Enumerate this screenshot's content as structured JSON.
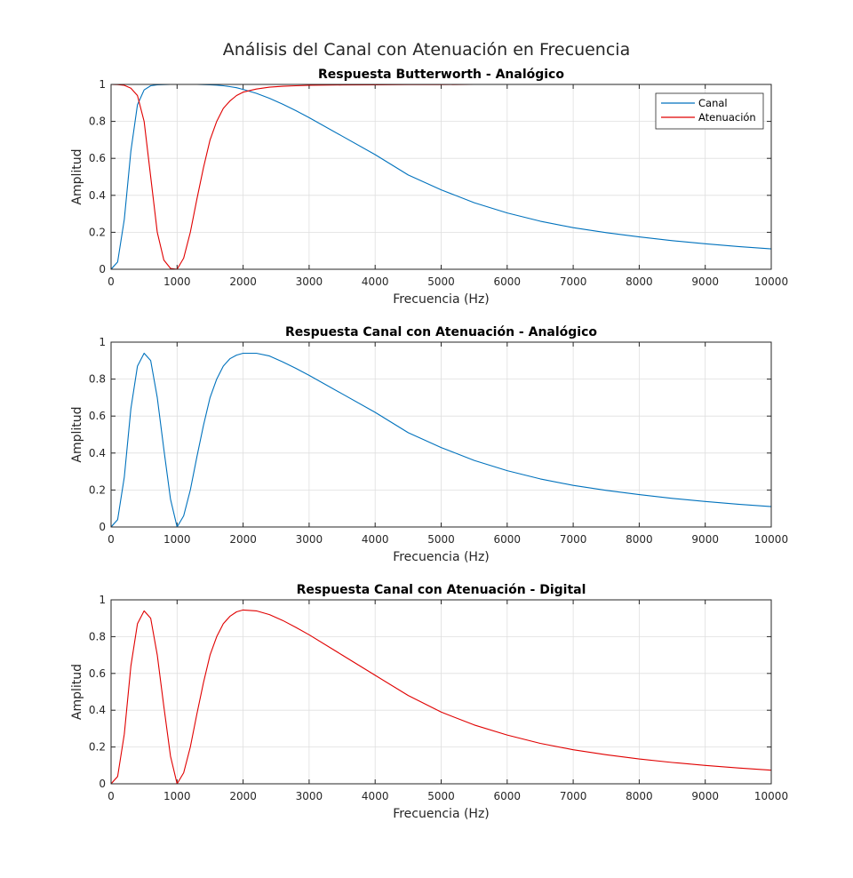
{
  "figure": {
    "suptitle": "Análisis del Canal con Atenuación en Frecuencia"
  },
  "chart_data": [
    {
      "type": "line",
      "title": "Respuesta Butterworth - Analógico",
      "xlabel": "Frecuencia (Hz)",
      "ylabel": "Amplitud",
      "xlim": [
        0,
        10000
      ],
      "ylim": [
        0,
        1
      ],
      "xticks": [
        "0",
        "1000",
        "2000",
        "3000",
        "4000",
        "5000",
        "6000",
        "7000",
        "8000",
        "9000",
        "10000"
      ],
      "yticks": [
        "0",
        "0.2",
        "0.4",
        "0.6",
        "0.8",
        "1"
      ],
      "grid": true,
      "legend": "top-right",
      "x": [
        0,
        100,
        200,
        300,
        400,
        500,
        600,
        700,
        800,
        900,
        1000,
        1100,
        1200,
        1300,
        1400,
        1500,
        1600,
        1700,
        1800,
        1900,
        2000,
        2200,
        2400,
        2600,
        2800,
        3000,
        3500,
        4000,
        4500,
        5000,
        5500,
        6000,
        6500,
        7000,
        7500,
        8000,
        8500,
        9000,
        9500,
        10000
      ],
      "series": [
        {
          "name": "Canal",
          "color": "#0072BD",
          "values": [
            0,
            0.04,
            0.27,
            0.64,
            0.89,
            0.97,
            0.993,
            0.998,
            0.999,
            1.0,
            1.0,
            1.0,
            1.0,
            1.0,
            0.999,
            0.998,
            0.996,
            0.993,
            0.988,
            0.982,
            0.973,
            0.952,
            0.925,
            0.893,
            0.858,
            0.82,
            0.72,
            0.62,
            0.51,
            0.43,
            0.36,
            0.305,
            0.26,
            0.225,
            0.198,
            0.175,
            0.155,
            0.138,
            0.123,
            0.11
          ]
        },
        {
          "name": "Atenuación",
          "color": "#E00000",
          "values": [
            1.0,
            0.999,
            0.995,
            0.98,
            0.94,
            0.8,
            0.5,
            0.2,
            0.05,
            0.005,
            0.0,
            0.06,
            0.2,
            0.38,
            0.55,
            0.7,
            0.8,
            0.87,
            0.91,
            0.94,
            0.958,
            0.975,
            0.985,
            0.99,
            0.993,
            0.995,
            0.997,
            0.998,
            0.999,
            0.999,
            1.0,
            1.0,
            1.0,
            1.0,
            1.0,
            1.0,
            1.0,
            1.0,
            1.0,
            1.0
          ]
        }
      ]
    },
    {
      "type": "line",
      "title": "Respuesta Canal con Atenuación - Analógico",
      "xlabel": "Frecuencia (Hz)",
      "ylabel": "Amplitud",
      "xlim": [
        0,
        10000
      ],
      "ylim": [
        0,
        1
      ],
      "xticks": [
        "0",
        "1000",
        "2000",
        "3000",
        "4000",
        "5000",
        "6000",
        "7000",
        "8000",
        "9000",
        "10000"
      ],
      "yticks": [
        "0",
        "0.2",
        "0.4",
        "0.6",
        "0.8",
        "1"
      ],
      "grid": true,
      "x": [
        0,
        100,
        200,
        300,
        400,
        500,
        600,
        700,
        800,
        900,
        1000,
        1100,
        1200,
        1300,
        1400,
        1500,
        1600,
        1700,
        1800,
        1900,
        2000,
        2200,
        2400,
        2600,
        2800,
        3000,
        3500,
        4000,
        4500,
        5000,
        5500,
        6000,
        6500,
        7000,
        7500,
        8000,
        8500,
        9000,
        9500,
        10000
      ],
      "series": [
        {
          "color": "#0072BD",
          "values": [
            0,
            0.04,
            0.27,
            0.64,
            0.87,
            0.94,
            0.9,
            0.7,
            0.42,
            0.15,
            0.0,
            0.06,
            0.2,
            0.38,
            0.55,
            0.7,
            0.8,
            0.87,
            0.91,
            0.93,
            0.94,
            0.94,
            0.925,
            0.893,
            0.858,
            0.82,
            0.72,
            0.62,
            0.51,
            0.43,
            0.36,
            0.305,
            0.26,
            0.225,
            0.198,
            0.175,
            0.155,
            0.138,
            0.123,
            0.11
          ]
        }
      ]
    },
    {
      "type": "line",
      "title": "Respuesta Canal con Atenuación - Digital",
      "xlabel": "Frecuencia (Hz)",
      "ylabel": "Amplitud",
      "xlim": [
        0,
        10000
      ],
      "ylim": [
        0,
        1
      ],
      "xticks": [
        "0",
        "1000",
        "2000",
        "3000",
        "4000",
        "5000",
        "6000",
        "7000",
        "8000",
        "9000",
        "10000"
      ],
      "yticks": [
        "0",
        "0.2",
        "0.4",
        "0.6",
        "0.8",
        "1"
      ],
      "grid": true,
      "x": [
        0,
        100,
        200,
        300,
        400,
        500,
        600,
        700,
        800,
        900,
        1000,
        1100,
        1200,
        1300,
        1400,
        1500,
        1600,
        1700,
        1800,
        1900,
        2000,
        2200,
        2400,
        2600,
        2800,
        3000,
        3500,
        4000,
        4500,
        5000,
        5500,
        6000,
        6500,
        7000,
        7500,
        8000,
        8500,
        9000,
        9500,
        10000
      ],
      "series": [
        {
          "color": "#E00000",
          "values": [
            0,
            0.04,
            0.27,
            0.64,
            0.87,
            0.94,
            0.9,
            0.7,
            0.42,
            0.15,
            0.0,
            0.06,
            0.2,
            0.38,
            0.55,
            0.7,
            0.8,
            0.87,
            0.91,
            0.935,
            0.945,
            0.94,
            0.92,
            0.888,
            0.85,
            0.81,
            0.7,
            0.59,
            0.48,
            0.39,
            0.32,
            0.265,
            0.22,
            0.185,
            0.158,
            0.135,
            0.116,
            0.1,
            0.086,
            0.074
          ]
        }
      ]
    }
  ]
}
